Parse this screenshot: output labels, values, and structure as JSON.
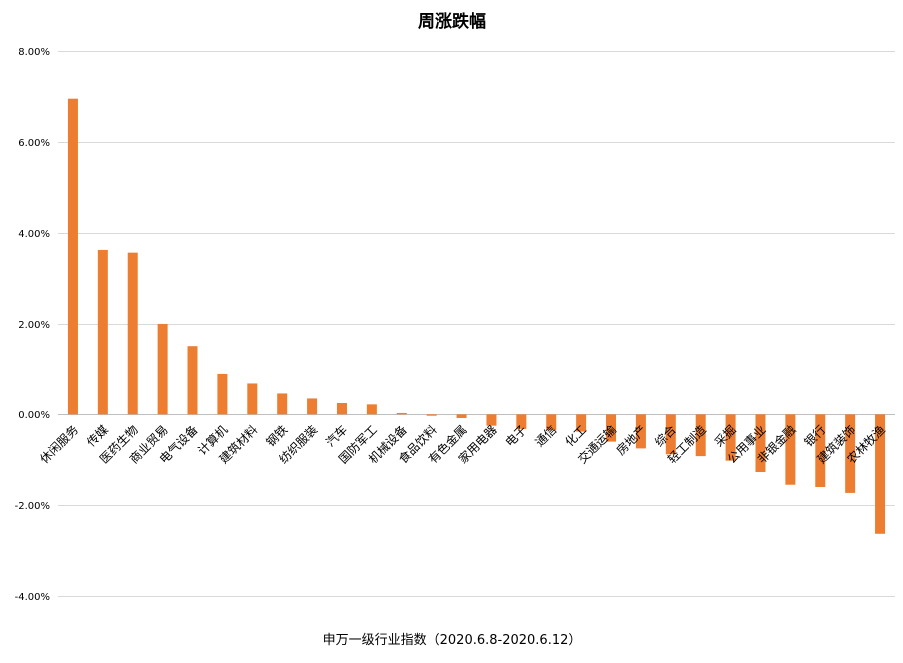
{
  "chart_data": {
    "type": "bar",
    "title": "周涨跌幅",
    "xlabel": "申万一级行业指数（2020.6.8-2020.6.12）",
    "ylabel": "",
    "ylim": [
      -4,
      8
    ],
    "yticks": [
      8,
      6,
      4,
      2,
      0,
      -2,
      -4
    ],
    "ytick_labels": [
      "8.00%",
      "6.00%",
      "4.00%",
      "2.00%",
      "0.00%",
      "-2.00%",
      "-4.00%"
    ],
    "grid": true,
    "legend": "none",
    "bar_color": "#ed7d31",
    "categories": [
      "休闲服务",
      "传媒",
      "医药生物",
      "商业贸易",
      "电气设备",
      "计算机",
      "建筑材料",
      "钢铁",
      "纺织服装",
      "汽车",
      "国防军工",
      "机械设备",
      "食品饮料",
      "有色金属",
      "家用电器",
      "电子",
      "通信",
      "化工",
      "交通运输",
      "房地产",
      "综合",
      "轻工制造",
      "采掘",
      "公用事业",
      "非银金融",
      "银行",
      "建筑装饰",
      "农林牧渔"
    ],
    "values": [
      6.95,
      3.62,
      3.56,
      1.99,
      1.5,
      0.89,
      0.68,
      0.46,
      0.35,
      0.25,
      0.22,
      0.03,
      -0.03,
      -0.08,
      -0.25,
      -0.32,
      -0.35,
      -0.38,
      -0.6,
      -0.75,
      -0.88,
      -0.92,
      -1.02,
      -1.27,
      -1.55,
      -1.6,
      -1.73,
      -2.63
    ]
  }
}
